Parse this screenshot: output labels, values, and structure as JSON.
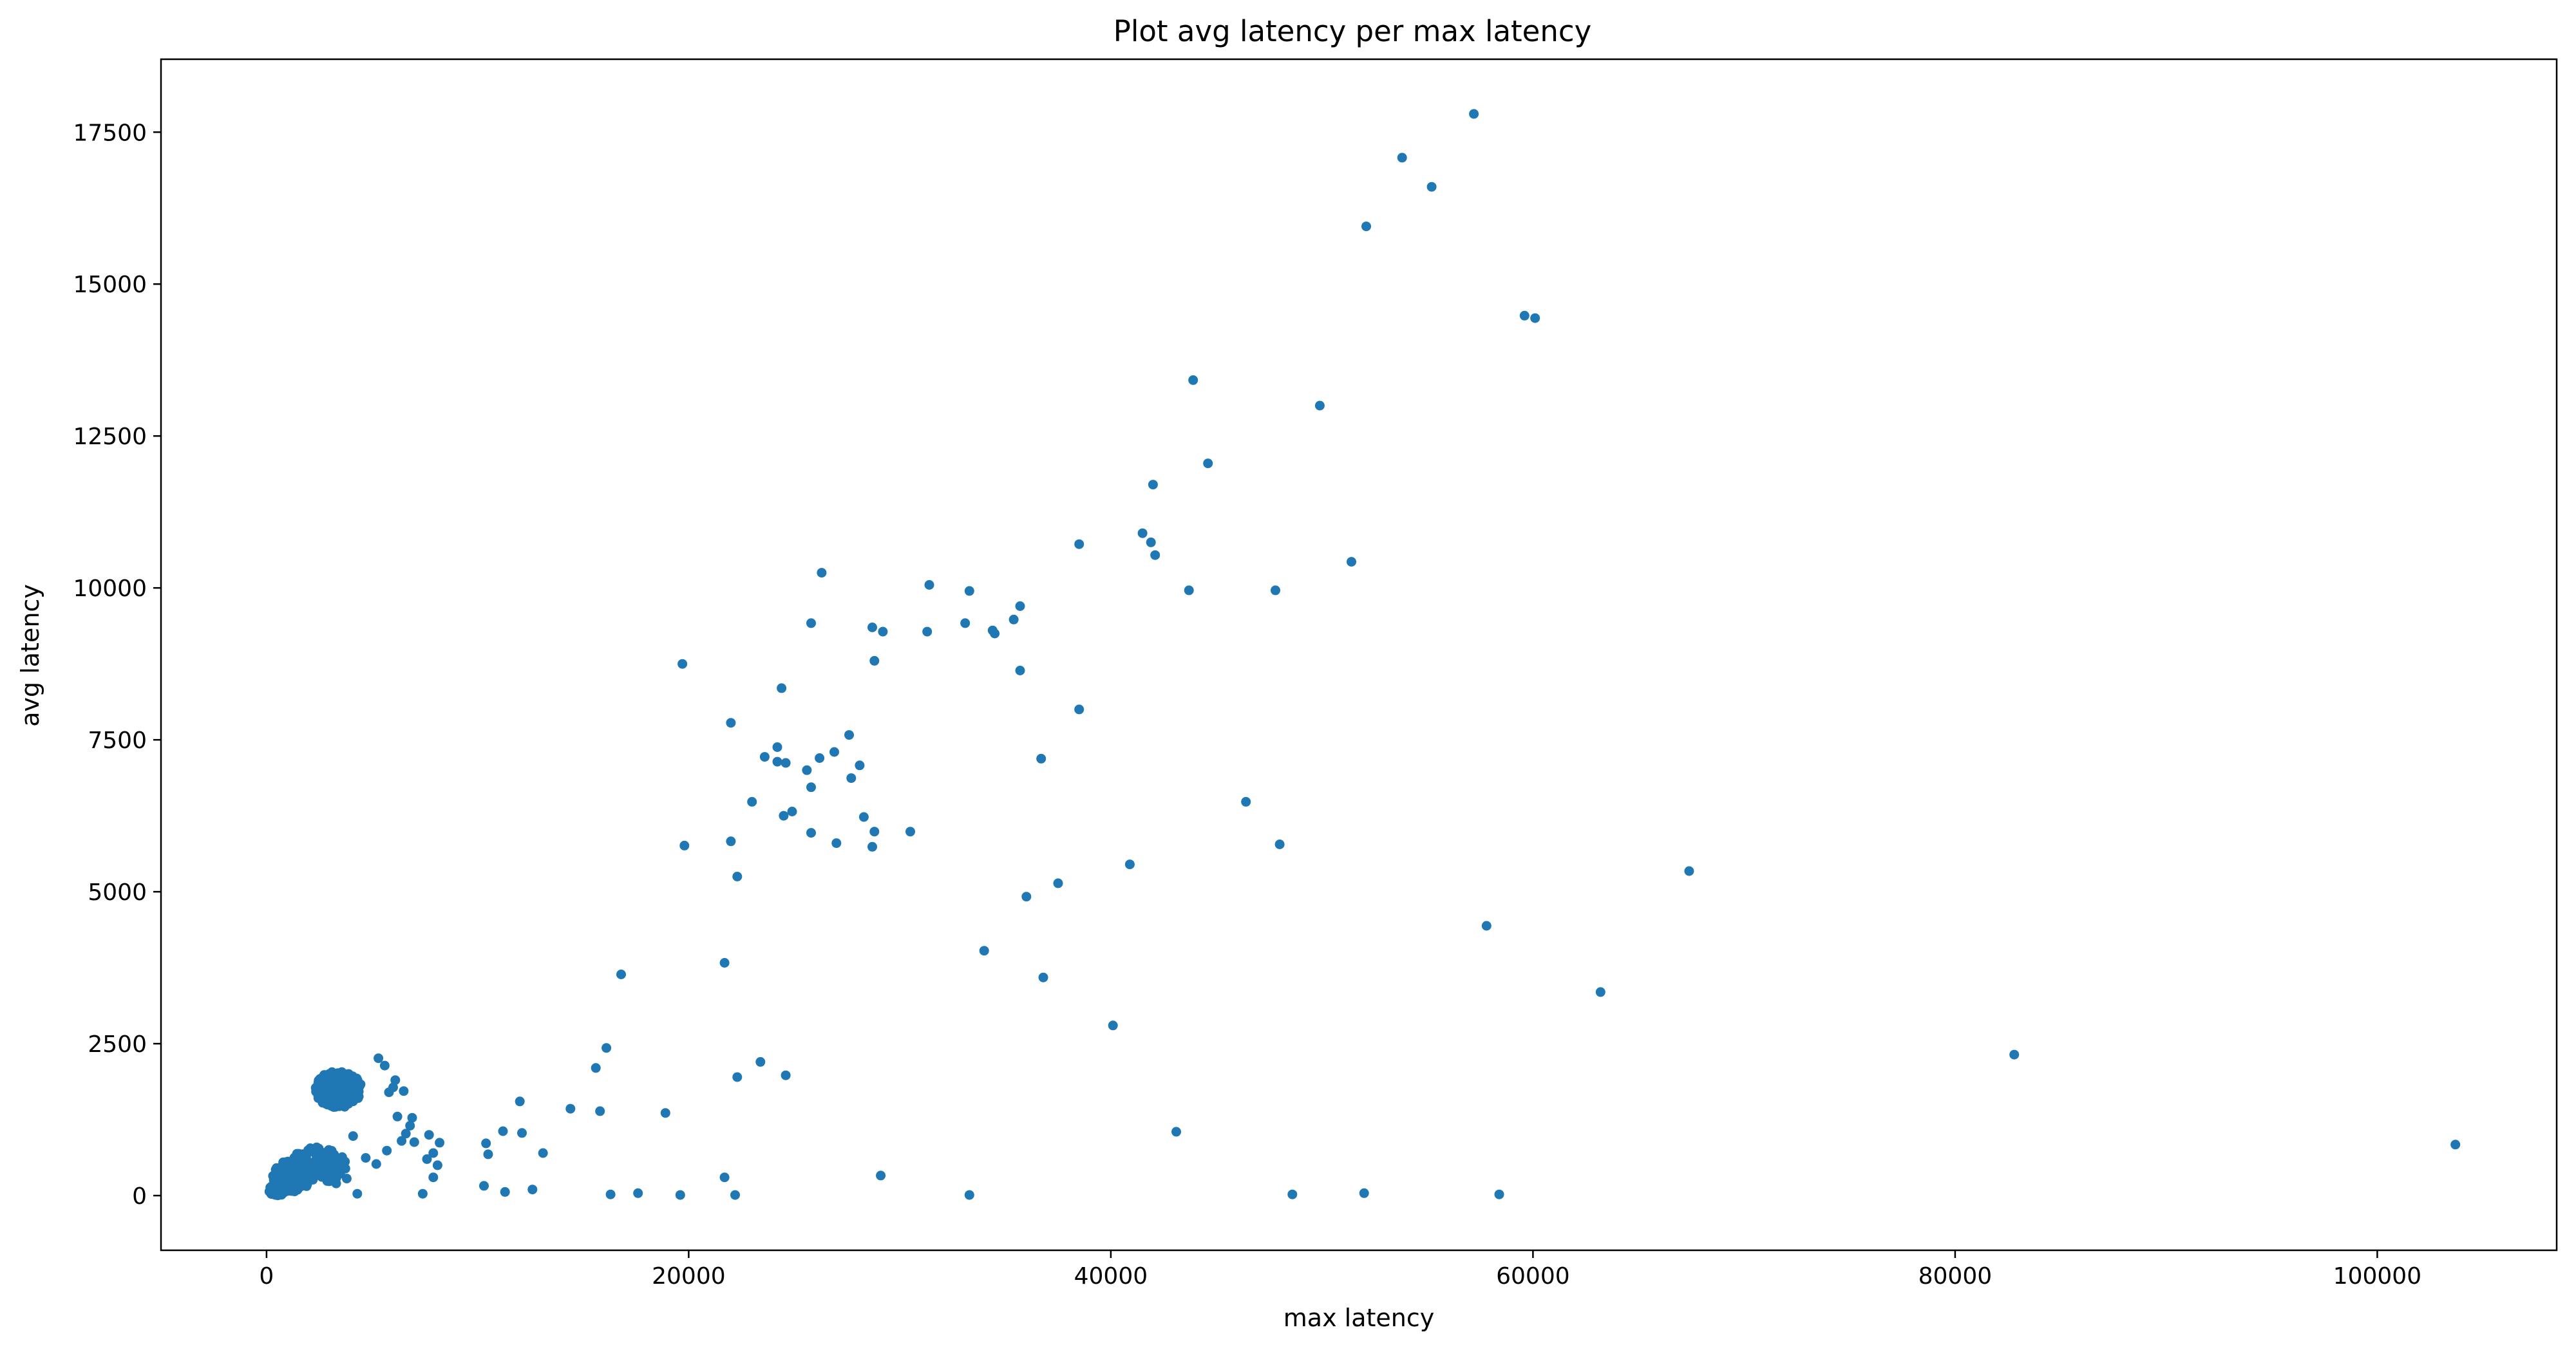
{
  "chart_data": {
    "type": "scatter",
    "title": "Plot avg latency per max latency",
    "xlabel": "max latency",
    "ylabel": "avg latency",
    "xlim": [
      -5000,
      108500
    ],
    "ylim": [
      -900,
      18700
    ],
    "xticks": [
      0,
      20000,
      40000,
      60000,
      80000,
      100000
    ],
    "yticks": [
      0,
      2500,
      5000,
      7500,
      10000,
      12500,
      15000,
      17500
    ],
    "grid": false,
    "legend": "none",
    "marker_color": "#1f77b4",
    "series": [
      {
        "points": [
          [
            57200,
            17800
          ],
          [
            53800,
            17080
          ],
          [
            55200,
            16600
          ],
          [
            52100,
            15950
          ],
          [
            59600,
            14480
          ],
          [
            60100,
            14440
          ],
          [
            43900,
            13420
          ],
          [
            49900,
            13000
          ],
          [
            44600,
            12050
          ],
          [
            42000,
            11700
          ],
          [
            41500,
            10900
          ],
          [
            41900,
            10750
          ],
          [
            38500,
            10720
          ],
          [
            42100,
            10540
          ],
          [
            51400,
            10430
          ],
          [
            26300,
            10250
          ],
          [
            31400,
            10050
          ],
          [
            33300,
            9950
          ],
          [
            43700,
            9960
          ],
          [
            47800,
            9960
          ],
          [
            35700,
            9700
          ],
          [
            35400,
            9480
          ],
          [
            33100,
            9420
          ],
          [
            25800,
            9420
          ],
          [
            28700,
            9350
          ],
          [
            29200,
            9280
          ],
          [
            31300,
            9280
          ],
          [
            34400,
            9300
          ],
          [
            34500,
            9250
          ],
          [
            28800,
            8800
          ],
          [
            19700,
            8750
          ],
          [
            35700,
            8640
          ],
          [
            24400,
            8350
          ],
          [
            38500,
            8000
          ],
          [
            22000,
            7780
          ],
          [
            27600,
            7580
          ],
          [
            24200,
            7380
          ],
          [
            23600,
            7220
          ],
          [
            26900,
            7300
          ],
          [
            26200,
            7200
          ],
          [
            24200,
            7140
          ],
          [
            24600,
            7120
          ],
          [
            36700,
            7190
          ],
          [
            25600,
            7000
          ],
          [
            28100,
            7080
          ],
          [
            27700,
            6870
          ],
          [
            25800,
            6720
          ],
          [
            23000,
            6480
          ],
          [
            46400,
            6480
          ],
          [
            24900,
            6320
          ],
          [
            24500,
            6250
          ],
          [
            28300,
            6230
          ],
          [
            28800,
            5990
          ],
          [
            30500,
            5990
          ],
          [
            25800,
            5970
          ],
          [
            22000,
            5830
          ],
          [
            27000,
            5800
          ],
          [
            28700,
            5740
          ],
          [
            48000,
            5780
          ],
          [
            19800,
            5760
          ],
          [
            40900,
            5450
          ],
          [
            67400,
            5340
          ],
          [
            22300,
            5250
          ],
          [
            37500,
            5140
          ],
          [
            36000,
            4920
          ],
          [
            57800,
            4440
          ],
          [
            34000,
            4030
          ],
          [
            21700,
            3830
          ],
          [
            36800,
            3590
          ],
          [
            16800,
            3640
          ],
          [
            63200,
            3350
          ],
          [
            40100,
            2800
          ],
          [
            82800,
            2320
          ],
          [
            16100,
            2430
          ],
          [
            23400,
            2200
          ],
          [
            15600,
            2100
          ],
          [
            22300,
            1950
          ],
          [
            24600,
            1980
          ],
          [
            12000,
            1550
          ],
          [
            14400,
            1430
          ],
          [
            15800,
            1390
          ],
          [
            18900,
            1360
          ],
          [
            11200,
            1060
          ],
          [
            12100,
            1030
          ],
          [
            43100,
            1050
          ],
          [
            10400,
            860
          ],
          [
            103700,
            840
          ],
          [
            10500,
            680
          ],
          [
            13100,
            700
          ],
          [
            21700,
            300
          ],
          [
            29100,
            330
          ],
          [
            10300,
            160
          ],
          [
            11300,
            60
          ],
          [
            12600,
            100
          ],
          [
            16300,
            20
          ],
          [
            17600,
            40
          ],
          [
            19600,
            10
          ],
          [
            22200,
            10
          ],
          [
            33300,
            10
          ],
          [
            48600,
            20
          ],
          [
            52000,
            40
          ],
          [
            58400,
            20
          ],
          [
            6100,
            1900
          ],
          [
            6500,
            1720
          ],
          [
            6900,
            1280
          ],
          [
            6200,
            1300
          ],
          [
            7700,
            1000
          ],
          [
            8200,
            870
          ],
          [
            7900,
            700
          ],
          [
            6600,
            1020
          ],
          [
            7000,
            880
          ],
          [
            7600,
            600
          ],
          [
            8100,
            500
          ],
          [
            7900,
            300
          ],
          [
            7400,
            30
          ],
          [
            4300,
            30
          ],
          [
            5300,
            2260
          ],
          [
            5600,
            2140
          ],
          [
            6000,
            1780
          ],
          [
            6400,
            900
          ],
          [
            5700,
            740
          ],
          [
            4700,
            620
          ],
          [
            5200,
            520
          ],
          [
            3800,
            280
          ],
          [
            3300,
            200
          ],
          [
            4100,
            980
          ],
          [
            5800,
            1700
          ],
          [
            6800,
            1150
          ]
        ]
      }
    ],
    "clusters": [
      {
        "x_center": 3400,
        "y_center": 1750,
        "x_spread": 1100,
        "y_spread": 300,
        "count": 240
      },
      {
        "x_center": 1200,
        "y_center": 320,
        "x_spread": 900,
        "y_spread": 260,
        "count": 260
      },
      {
        "x_center": 2400,
        "y_center": 500,
        "x_spread": 1400,
        "y_spread": 300,
        "count": 120
      },
      {
        "x_center": 500,
        "y_center": 90,
        "x_spread": 400,
        "y_spread": 90,
        "count": 120
      }
    ]
  }
}
